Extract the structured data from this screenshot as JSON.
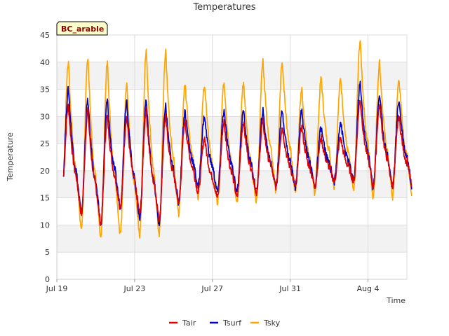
{
  "chart_data": {
    "type": "line",
    "title": "Temperatures",
    "xlabel": "Time",
    "ylabel": "Temperature",
    "badge": "BC_arable",
    "ylim": [
      0,
      45
    ],
    "yticks": [
      0,
      5,
      10,
      15,
      20,
      25,
      30,
      35,
      40,
      45
    ],
    "xlim": [
      "2023-07-19",
      "2023-08-06"
    ],
    "xticks": [
      {
        "date": "2023-07-19",
        "label": "Jul 19"
      },
      {
        "date": "2023-07-23",
        "label": "Jul 23"
      },
      {
        "date": "2023-07-27",
        "label": "Jul 27"
      },
      {
        "date": "2023-07-31",
        "label": "Jul 31"
      },
      {
        "date": "2023-08-04",
        "label": "Aug 4"
      }
    ],
    "grid": true,
    "legend_position": "bottom",
    "series": [
      {
        "name": "Tair",
        "color": "#dd0000",
        "daily_min": [
          16,
          12,
          10,
          13,
          12,
          11,
          14,
          16,
          15,
          15,
          16,
          17,
          17,
          17,
          18,
          18,
          17,
          17
        ],
        "daily_max": [
          32,
          31,
          30,
          30,
          31,
          30,
          29,
          26,
          29,
          29,
          29,
          28,
          28,
          26,
          26,
          33,
          32,
          30
        ]
      },
      {
        "name": "Tsurf",
        "color": "#0000cc",
        "daily_min": [
          16,
          12,
          10,
          13,
          11,
          10,
          14,
          17,
          16,
          16,
          16,
          17,
          17,
          17,
          18,
          18,
          17,
          17
        ],
        "daily_max": [
          35,
          33,
          33,
          33,
          33,
          32,
          31,
          30,
          31,
          31,
          31,
          31,
          31,
          28,
          29,
          36,
          34,
          33
        ]
      },
      {
        "name": "Tsky",
        "color": "#ffa500",
        "daily_min": [
          14,
          9,
          7,
          8,
          8,
          8,
          12,
          15,
          14,
          14,
          14,
          16,
          16,
          16,
          17,
          16,
          15,
          15
        ],
        "daily_max": [
          40,
          41,
          40,
          36,
          42,
          42,
          36,
          36,
          36,
          36,
          40,
          40,
          35,
          37,
          37,
          44,
          40,
          37
        ]
      }
    ]
  }
}
